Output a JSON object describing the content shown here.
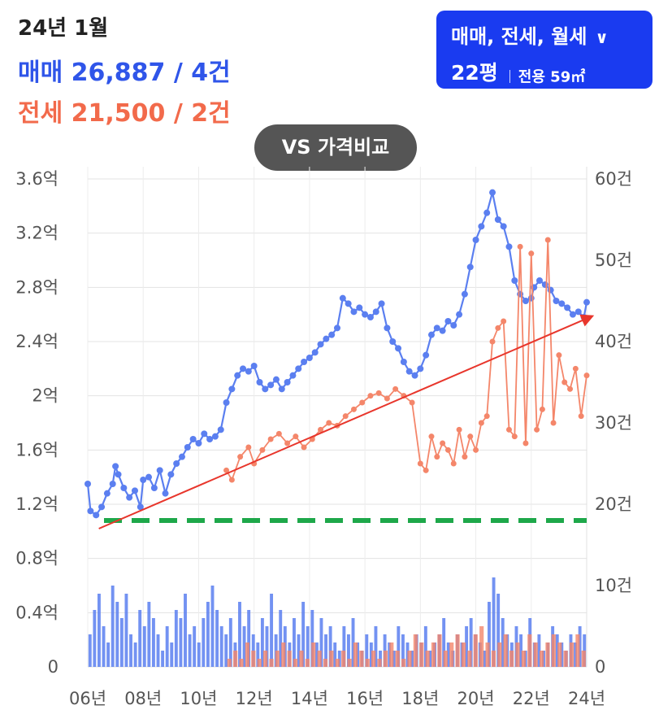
{
  "header": {
    "period": "24년 1월",
    "sale_summary": "매매 26,887 / 4건",
    "jeonse_summary": "전세 21,500 / 2건"
  },
  "filter": {
    "trade_types": "매매, 전세, 월세",
    "pyeong": "22평",
    "area": "전용 59㎡",
    "chevron_icon": "chevron-down-icon"
  },
  "compare_button": {
    "label": "VS 가격비교"
  },
  "colors": {
    "sale": "#5b7ff0",
    "jeonse": "#f4866a",
    "trend": "#e8362c",
    "reference": "#1ea84a",
    "accent": "#1a3bf0"
  },
  "chart_data": {
    "type": "line",
    "x_ticks": [
      "06년",
      "08년",
      "10년",
      "12년",
      "14년",
      "16년",
      "18년",
      "20년",
      "22년",
      "24년"
    ],
    "y_left_ticks": [
      "0",
      "0.4억",
      "0.8억",
      "1.2억",
      "1.6억",
      "2억",
      "2.4억",
      "2.8억",
      "3.2억",
      "3.6억"
    ],
    "y_left_range": [
      0,
      3.6
    ],
    "y_right_ticks": [
      "0",
      "10건",
      "20건",
      "30건",
      "40건",
      "50건",
      "60건"
    ],
    "y_right_range": [
      0,
      60
    ],
    "grid": true,
    "reference_line": {
      "value": 1.08,
      "style": "dashed"
    },
    "trend_line": {
      "x": [
        2006.4,
        2024.0
      ],
      "y": [
        1.02,
        2.57
      ]
    },
    "series": [
      {
        "name": "매매",
        "x": [
          2006.0,
          2006.1,
          2006.3,
          2006.5,
          2006.7,
          2006.9,
          2007.0,
          2007.1,
          2007.3,
          2007.5,
          2007.7,
          2007.9,
          2008.0,
          2008.2,
          2008.4,
          2008.6,
          2008.8,
          2009.0,
          2009.2,
          2009.4,
          2009.6,
          2009.8,
          2010.0,
          2010.2,
          2010.4,
          2010.6,
          2010.8,
          2011.0,
          2011.2,
          2011.4,
          2011.6,
          2011.8,
          2012.0,
          2012.2,
          2012.4,
          2012.6,
          2012.8,
          2013.0,
          2013.2,
          2013.4,
          2013.6,
          2013.8,
          2014.0,
          2014.2,
          2014.4,
          2014.6,
          2014.8,
          2015.0,
          2015.2,
          2015.4,
          2015.6,
          2015.8,
          2016.0,
          2016.2,
          2016.4,
          2016.6,
          2016.8,
          2017.0,
          2017.2,
          2017.4,
          2017.6,
          2017.8,
          2018.0,
          2018.2,
          2018.4,
          2018.6,
          2018.8,
          2019.0,
          2019.2,
          2019.4,
          2019.6,
          2019.8,
          2020.0,
          2020.2,
          2020.4,
          2020.6,
          2020.8,
          2021.0,
          2021.2,
          2021.4,
          2021.6,
          2021.8,
          2022.0,
          2022.1,
          2022.3,
          2022.5,
          2022.7,
          2022.9,
          2023.1,
          2023.3,
          2023.5,
          2023.7,
          2023.9,
          2024.0
        ],
        "values": [
          1.35,
          1.15,
          1.12,
          1.18,
          1.28,
          1.35,
          1.48,
          1.42,
          1.32,
          1.25,
          1.3,
          1.18,
          1.38,
          1.4,
          1.32,
          1.45,
          1.28,
          1.42,
          1.5,
          1.55,
          1.62,
          1.68,
          1.65,
          1.72,
          1.68,
          1.7,
          1.75,
          1.95,
          2.05,
          2.15,
          2.2,
          2.18,
          2.22,
          2.1,
          2.05,
          2.08,
          2.12,
          2.05,
          2.1,
          2.15,
          2.2,
          2.25,
          2.28,
          2.32,
          2.38,
          2.42,
          2.45,
          2.5,
          2.72,
          2.68,
          2.62,
          2.65,
          2.6,
          2.58,
          2.62,
          2.68,
          2.5,
          2.4,
          2.35,
          2.25,
          2.18,
          2.15,
          2.2,
          2.3,
          2.45,
          2.5,
          2.48,
          2.55,
          2.52,
          2.6,
          2.75,
          2.95,
          3.15,
          3.25,
          3.35,
          3.5,
          3.3,
          3.25,
          3.1,
          2.85,
          2.75,
          2.7,
          2.72,
          2.8,
          2.85,
          2.82,
          2.78,
          2.7,
          2.68,
          2.65,
          2.6,
          2.62,
          2.58,
          2.69
        ]
      },
      {
        "name": "전세",
        "x": [
          2011.0,
          2011.2,
          2011.5,
          2011.8,
          2012.0,
          2012.3,
          2012.6,
          2012.9,
          2013.2,
          2013.5,
          2013.8,
          2014.1,
          2014.4,
          2014.7,
          2015.0,
          2015.3,
          2015.6,
          2015.9,
          2016.2,
          2016.5,
          2016.8,
          2017.1,
          2017.4,
          2017.7,
          2018.0,
          2018.2,
          2018.4,
          2018.6,
          2018.8,
          2019.0,
          2019.2,
          2019.4,
          2019.6,
          2019.8,
          2020.0,
          2020.2,
          2020.4,
          2020.6,
          2020.8,
          2021.0,
          2021.2,
          2021.4,
          2021.6,
          2021.8,
          2022.0,
          2022.2,
          2022.4,
          2022.6,
          2022.8,
          2023.0,
          2023.2,
          2023.4,
          2023.6,
          2023.8,
          2024.0
        ],
        "values": [
          1.45,
          1.38,
          1.55,
          1.62,
          1.5,
          1.6,
          1.68,
          1.72,
          1.65,
          1.7,
          1.62,
          1.68,
          1.75,
          1.8,
          1.78,
          1.85,
          1.9,
          1.95,
          2.0,
          2.02,
          1.98,
          2.05,
          2.0,
          1.95,
          1.5,
          1.45,
          1.7,
          1.55,
          1.65,
          1.6,
          1.5,
          1.75,
          1.55,
          1.7,
          1.6,
          1.8,
          1.85,
          2.4,
          2.5,
          2.55,
          1.75,
          1.7,
          3.1,
          1.65,
          3.05,
          1.75,
          1.9,
          3.15,
          1.8,
          2.3,
          2.1,
          2.05,
          2.2,
          1.85,
          2.15
        ]
      }
    ],
    "volume_bars": {
      "note": "monthly transaction counts on right axis",
      "sale_counts": [
        4,
        7,
        9,
        5,
        3,
        10,
        8,
        6,
        9,
        4,
        3,
        7,
        5,
        8,
        6,
        4,
        2,
        5,
        3,
        7,
        6,
        9,
        4,
        5,
        3,
        6,
        8,
        10,
        7,
        5,
        4,
        6,
        3,
        8,
        5,
        7,
        4,
        3,
        6,
        5,
        9,
        4,
        7,
        5,
        3,
        6,
        4,
        8,
        5,
        7,
        3,
        6,
        4,
        5,
        3,
        2,
        5,
        4,
        6,
        3,
        2,
        4,
        3,
        5,
        2,
        4,
        3,
        2,
        5,
        4,
        3,
        2,
        4,
        3,
        5,
        2,
        3,
        4,
        6,
        3,
        2,
        4,
        3,
        5,
        6,
        4,
        3,
        2,
        8,
        11,
        9,
        6,
        4,
        3,
        5,
        4,
        2,
        6,
        3,
        4,
        2,
        3,
        5,
        4,
        3,
        2,
        4,
        3,
        5,
        4
      ],
      "jeonse_counts": [
        1,
        2,
        1,
        3,
        2,
        1,
        2,
        1,
        2,
        3,
        2,
        1,
        2,
        1,
        3,
        2,
        1,
        2,
        1,
        2,
        1,
        3,
        2,
        1,
        2,
        1,
        2,
        3,
        2,
        1,
        2,
        4,
        3,
        2,
        3,
        4,
        2,
        3,
        4,
        3,
        2,
        4,
        5,
        3,
        2,
        3,
        4,
        2,
        3,
        2,
        4,
        3,
        2,
        3,
        4,
        3,
        2,
        3,
        4,
        2
      ]
    }
  }
}
